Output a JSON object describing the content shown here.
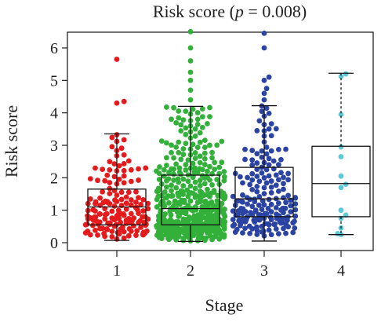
{
  "chart_data": {
    "type": "boxplot-beeswarm",
    "title": "Risk score (p = 0.008)",
    "title_parts": {
      "prefix": "Risk score (",
      "p_symbol": "p",
      "suffix": " = 0.008)"
    },
    "xlabel": "Stage",
    "ylabel": "Risk score",
    "ylim": [
      -0.2,
      6.5
    ],
    "yticks": [
      0,
      1,
      2,
      3,
      4,
      5,
      6
    ],
    "categories": [
      "1",
      "2",
      "3",
      "4"
    ],
    "grid": false,
    "groups": [
      {
        "name": "1",
        "color": "#e41a1c",
        "box": {
          "whisker_low": 0.07,
          "q1": 0.55,
          "median": 1.1,
          "q3": 1.65,
          "whisker_high": 3.35
        },
        "whisker_style": "solid",
        "point_count": 170,
        "notable_points": [
          4.35,
          4.3,
          5.65
        ]
      },
      {
        "name": "2",
        "color": "#33b03a",
        "box": {
          "whisker_low": 0.04,
          "q1": 0.55,
          "median": 1.05,
          "q3": 2.08,
          "whisker_high": 4.2
        },
        "whisker_style": "solid",
        "point_count": 520,
        "notable_points": [
          4.4,
          4.7,
          5.0,
          5.25,
          5.6,
          6.0,
          6.5
        ]
      },
      {
        "name": "3",
        "color": "#2b44a4",
        "box": {
          "whisker_low": 0.05,
          "q1": 0.8,
          "median": 1.35,
          "q3": 2.32,
          "whisker_high": 4.22
        },
        "whisker_style": "solid",
        "point_count": 200,
        "notable_points": [
          4.4,
          4.6,
          4.75,
          5.0,
          5.1,
          6.0,
          6.45
        ]
      },
      {
        "name": "4",
        "color": "#5ec8d8",
        "box": {
          "whisker_low": 0.25,
          "q1": 0.8,
          "median": 1.82,
          "q3": 2.97,
          "whisker_high": 5.22
        },
        "whisker_style": "dotted",
        "point_count": 14,
        "points": [
          5.2,
          5.12,
          3.95,
          2.95,
          2.65,
          2.05,
          1.8,
          1.7,
          1.0,
          0.85,
          0.75,
          0.45,
          0.28,
          0.25
        ]
      }
    ]
  }
}
